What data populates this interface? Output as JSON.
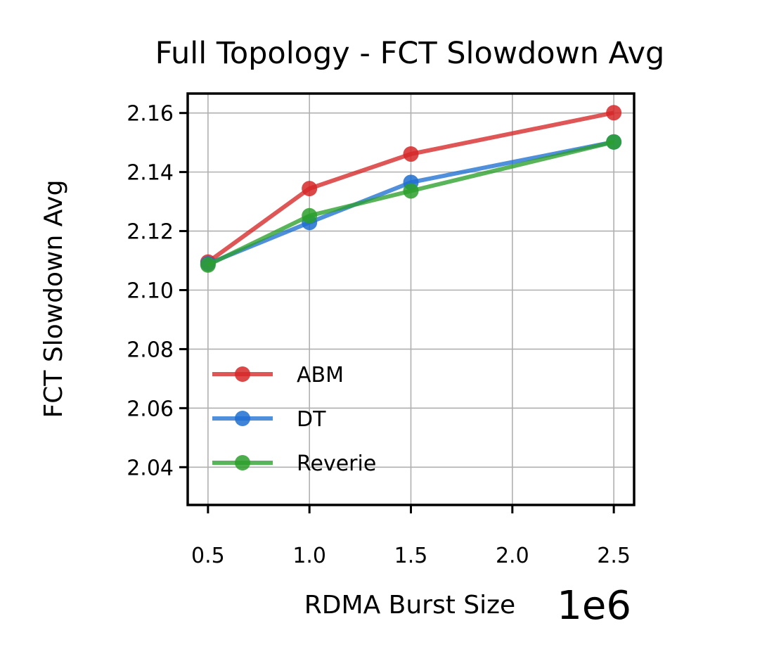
{
  "chart_data": {
    "type": "line",
    "title": "Full Topology - FCT Slowdown Avg",
    "xlabel": "RDMA Burst Size",
    "ylabel": "FCT Slowdown Avg",
    "x_offset_label": "1e6",
    "x": [
      500000,
      1000000,
      1500000,
      2500000
    ],
    "xlim": [
      400000,
      2600000
    ],
    "ylim": [
      2.0272,
      2.1666
    ],
    "x_ticks": [
      500000,
      1000000,
      1500000,
      2000000,
      2500000
    ],
    "x_tick_labels": [
      "0.5",
      "1.0",
      "1.5",
      "2.0",
      "2.5"
    ],
    "y_ticks": [
      2.04,
      2.06,
      2.08,
      2.1,
      2.12,
      2.14,
      2.16
    ],
    "y_tick_labels": [
      "2.04",
      "2.06",
      "2.08",
      "2.10",
      "2.12",
      "2.14",
      "2.16"
    ],
    "grid": true,
    "legend_position": "lower-left",
    "series": [
      {
        "name": "ABM",
        "color": "#d62728",
        "values": [
          2.1095,
          2.1344,
          2.1461,
          2.1601
        ]
      },
      {
        "name": "DT",
        "color": "#1f6fd1",
        "values": [
          2.1089,
          2.1229,
          2.1365,
          2.1502
        ]
      },
      {
        "name": "Reverie",
        "color": "#2ca02c",
        "values": [
          2.1085,
          2.1252,
          2.1336,
          2.1502
        ]
      }
    ]
  }
}
